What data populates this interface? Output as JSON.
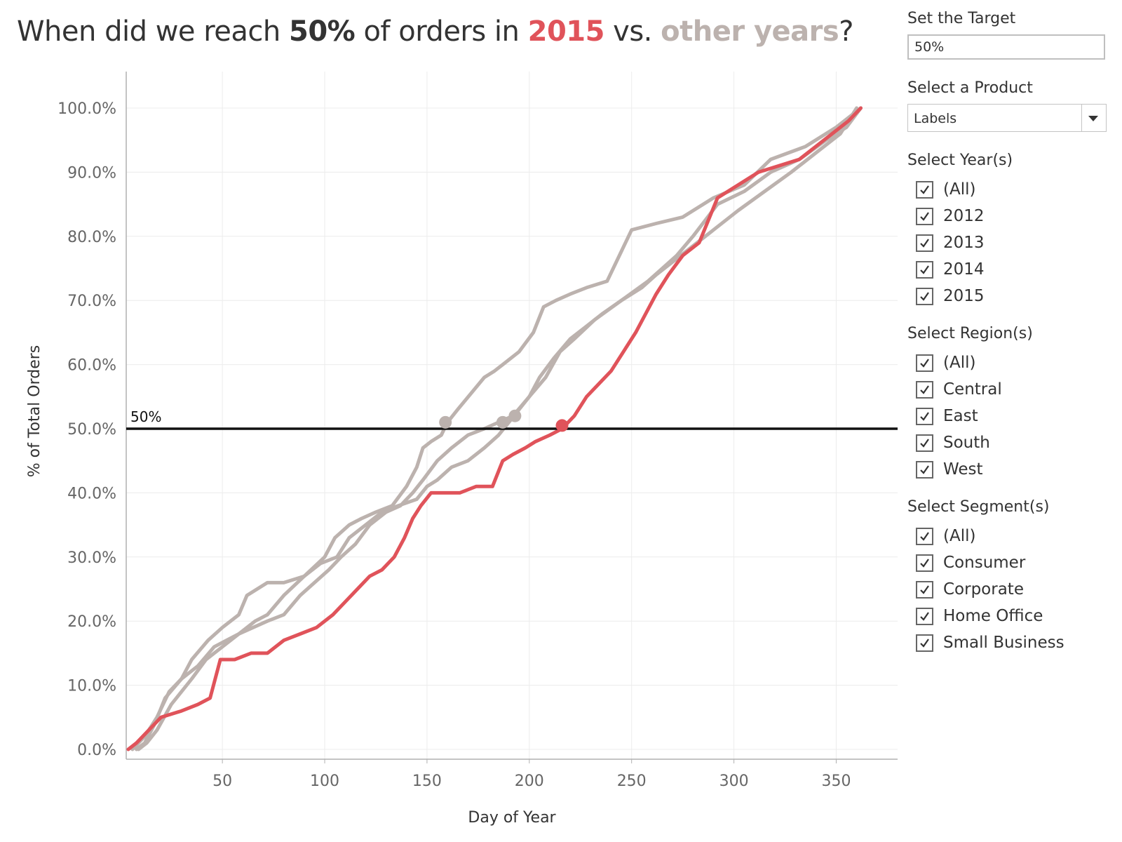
{
  "title": {
    "prefix": "When did we reach ",
    "target": "50%",
    "middle": " of orders in ",
    "highlight_year": "2015",
    "vs": " vs. ",
    "other": "other years",
    "suffix": "?"
  },
  "colors": {
    "highlight": "#e0535a",
    "other": "#bcb2ae",
    "text": "#333333",
    "axis": "#666666"
  },
  "sidebar": {
    "target": {
      "label": "Set the Target",
      "value": "50%"
    },
    "product": {
      "label": "Select a Product",
      "value": "Labels"
    },
    "years": {
      "label": "Select Year(s)",
      "items": [
        "(All)",
        "2012",
        "2013",
        "2014",
        "2015"
      ]
    },
    "regions": {
      "label": "Select Region(s)",
      "items": [
        "(All)",
        "Central",
        "East",
        "South",
        "West"
      ]
    },
    "segments": {
      "label": "Select Segment(s)",
      "items": [
        "(All)",
        "Consumer",
        "Corporate",
        "Home Office",
        "Small Business"
      ]
    }
  },
  "chart_data": {
    "type": "line",
    "xlabel": "Day of Year",
    "ylabel": "% of Total Orders",
    "xlim": [
      3,
      380
    ],
    "ylim": [
      0,
      100
    ],
    "x_ticks": [
      50,
      100,
      150,
      200,
      250,
      300,
      350
    ],
    "y_ticks": [
      0,
      10,
      20,
      30,
      40,
      50,
      60,
      70,
      80,
      90,
      100
    ],
    "y_tick_labels": [
      "0.0%",
      "10.0%",
      "20.0%",
      "30.0%",
      "40.0%",
      "50.0%",
      "60.0%",
      "70.0%",
      "80.0%",
      "90.0%",
      "100.0%"
    ],
    "reference_line": {
      "value": 50,
      "label": "50%"
    },
    "series": [
      {
        "name": "2012",
        "role": "other",
        "x": [
          8,
          12,
          17,
          22,
          30,
          35,
          43,
          50,
          58,
          62,
          72,
          80,
          90,
          100,
          105,
          112,
          118,
          125,
          133,
          140,
          145,
          148,
          152,
          157,
          160,
          165,
          178,
          183,
          187,
          195,
          202,
          207,
          213,
          220,
          228,
          238,
          250,
          262,
          275,
          290,
          305,
          318,
          335,
          350,
          358,
          362
        ],
        "y": [
          0,
          1,
          4,
          8,
          11,
          14,
          17,
          19,
          21,
          24,
          26,
          26,
          27,
          30,
          33,
          35,
          36,
          37,
          38,
          41,
          44,
          47,
          48,
          49,
          51,
          53,
          58,
          59,
          60,
          62,
          65,
          69,
          70,
          71,
          72,
          73,
          81,
          82,
          83,
          86,
          88,
          92,
          94,
          97,
          99,
          100
        ]
      },
      {
        "name": "2013",
        "role": "other",
        "x": [
          6,
          12,
          18,
          24,
          30,
          38,
          46,
          52,
          58,
          65,
          72,
          80,
          88,
          95,
          102,
          108,
          115,
          122,
          130,
          137,
          143,
          148,
          155,
          162,
          170,
          178,
          185,
          192,
          200,
          208,
          215,
          222,
          232,
          245,
          258,
          265,
          272,
          280,
          292,
          305,
          318,
          332,
          345,
          355,
          362
        ],
        "y": [
          0,
          2,
          5,
          9,
          11,
          13,
          16,
          17,
          18,
          19,
          20,
          21,
          24,
          26,
          28,
          30,
          32,
          35,
          37,
          38,
          40,
          42,
          45,
          47,
          49,
          50,
          51,
          52,
          55,
          58,
          62,
          64,
          67,
          70,
          73,
          75,
          77,
          80,
          85,
          87,
          90,
          92,
          95,
          97,
          100
        ]
      },
      {
        "name": "2014",
        "role": "other",
        "x": [
          9,
          13,
          18,
          25,
          35,
          42,
          50,
          58,
          66,
          72,
          80,
          90,
          98,
          106,
          112,
          120,
          128,
          136,
          145,
          150,
          155,
          162,
          170,
          178,
          185,
          190,
          195,
          200,
          205,
          212,
          220,
          228,
          236,
          245,
          255,
          262,
          270,
          278,
          290,
          302,
          315,
          328,
          340,
          352,
          360
        ],
        "y": [
          0,
          1,
          3,
          7,
          11,
          14,
          16,
          18,
          20,
          21,
          24,
          27,
          29,
          30,
          33,
          35,
          37,
          38,
          39,
          41,
          42,
          44,
          45,
          47,
          49,
          51,
          53,
          55,
          58,
          61,
          64,
          66,
          68,
          70,
          72,
          74,
          76,
          78,
          81,
          84,
          87,
          90,
          93,
          96,
          100
        ]
      },
      {
        "name": "2015",
        "role": "highlight",
        "x": [
          4,
          8,
          14,
          20,
          30,
          38,
          44,
          49,
          56,
          64,
          72,
          80,
          88,
          96,
          104,
          110,
          116,
          122,
          128,
          134,
          139,
          143,
          147,
          152,
          158,
          166,
          174,
          182,
          187,
          192,
          198,
          203,
          210,
          216,
          222,
          228,
          234,
          240,
          246,
          252,
          257,
          262,
          268,
          275,
          283,
          292,
          302,
          312,
          322,
          332,
          340,
          348,
          356,
          362
        ],
        "y": [
          0,
          1,
          3,
          5,
          6,
          7,
          8,
          14,
          14,
          15,
          15,
          17,
          18,
          19,
          21,
          23,
          25,
          27,
          28,
          30,
          33,
          36,
          38,
          40,
          40,
          40,
          41,
          41,
          45,
          46,
          47,
          48,
          49,
          50,
          52,
          55,
          57,
          59,
          62,
          65,
          68,
          71,
          74,
          77,
          79,
          86,
          88,
          90,
          91,
          92,
          94,
          96,
          98,
          100
        ]
      }
    ],
    "crossing_points": [
      {
        "series": "2012",
        "x": 159,
        "y": 51
      },
      {
        "series": "2013",
        "x": 187,
        "y": 51
      },
      {
        "series": "2014",
        "x": 193,
        "y": 52
      },
      {
        "series": "2015",
        "x": 216,
        "y": 50.5
      }
    ]
  }
}
